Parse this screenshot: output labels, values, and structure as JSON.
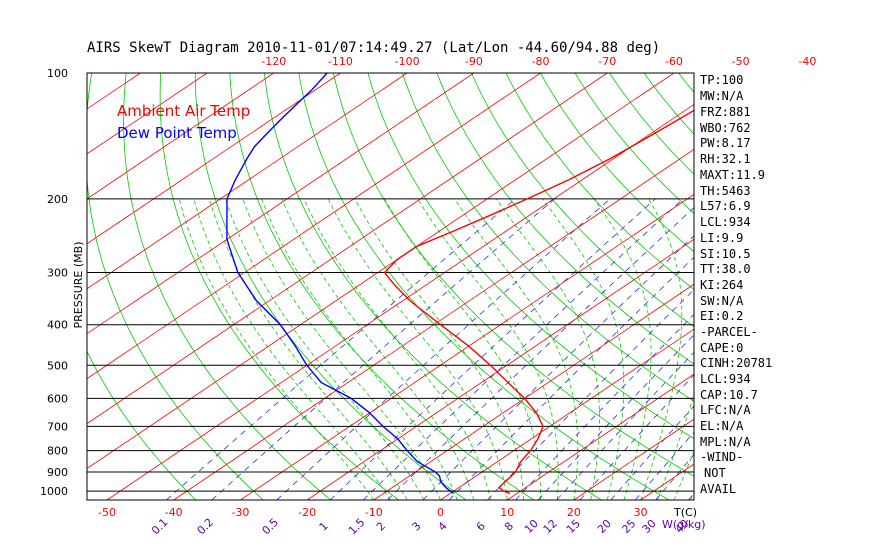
{
  "chart_data": {
    "type": "line",
    "title": "AIRS SkewT Diagram 2010-11-01/07:14:49.27 (Lat/Lon -44.60/94.88 deg)",
    "ylabel": "PRESSURE (MB)",
    "xlabel": "T(C)",
    "mixing_ratio_label": "W(g/kg)",
    "y_scale": "log",
    "ylim": [
      1050,
      100
    ],
    "xlim_at_1050mb": [
      -53,
      38
    ],
    "isotherm_skew_deg_C_per_ln_p": 40.4,
    "pressure_ticks": [
      100,
      200,
      300,
      400,
      500,
      600,
      700,
      800,
      900,
      1000
    ],
    "bottom_temp_ticks": [
      -50,
      -40,
      -30,
      -20,
      -10,
      0,
      10,
      20,
      30
    ],
    "top_temp_ticks": [
      -120,
      -110,
      -100,
      -90,
      -80,
      -70,
      -60,
      -50,
      -40
    ],
    "mixing_ratio_ticks": [
      "0.1",
      "0.2",
      "0.5",
      "1",
      "1.5",
      "2",
      "3",
      "4",
      "6",
      "8",
      "10",
      "12",
      "15",
      "20",
      "25",
      "30",
      "40"
    ],
    "mixing_ratio_values": [
      0.1,
      0.2,
      0.5,
      1,
      1.5,
      2,
      3,
      4,
      6,
      8,
      10,
      12,
      15,
      20,
      25,
      30,
      40
    ],
    "grid": true,
    "legend_position": "top-left",
    "series": [
      {
        "name": "Ambient Air Temp",
        "color": "#ff0000",
        "pressure": [
          1013,
          1000,
          980,
          950,
          920,
          900,
          850,
          800,
          750,
          700,
          650,
          600,
          550,
          500,
          450,
          400,
          350,
          320,
          300,
          280,
          260,
          240,
          220,
          200,
          180,
          160,
          150,
          140,
          130,
          120,
          110,
          100
        ],
        "values": [
          9.0,
          7.5,
          6.0,
          5.6,
          5.3,
          5.0,
          3.5,
          2.5,
          1.0,
          -1.0,
          -5.0,
          -10.0,
          -16.0,
          -22.5,
          -30.0,
          -39.0,
          -49.0,
          -55.0,
          -59.0,
          -60.0,
          -60.0,
          -58.0,
          -56.0,
          -54.0,
          -52.0,
          -50.5,
          -50.0,
          -49.5,
          -49.0,
          -48.5,
          -48.0,
          -47.5
        ]
      },
      {
        "name": "Dew Point Temp",
        "color": "#0000ff",
        "pressure": [
          1013,
          1000,
          980,
          950,
          920,
          900,
          850,
          800,
          750,
          700,
          650,
          600,
          550,
          500,
          450,
          400,
          350,
          300,
          250,
          200,
          180,
          160,
          150,
          140,
          130,
          120,
          110,
          100
        ],
        "values": [
          0.5,
          -0.5,
          -2.0,
          -4.0,
          -5.5,
          -7.0,
          -12.0,
          -16.0,
          -20.0,
          -25.0,
          -30.0,
          -36.0,
          -44.0,
          -50.0,
          -56.0,
          -63.0,
          -72.0,
          -81.0,
          -90.0,
          -99.0,
          -102.0,
          -105.0,
          -106.5,
          -107.5,
          -108.5,
          -109.5,
          -110.5,
          -112.0
        ]
      }
    ]
  },
  "indices": {
    "tp": "TP:100",
    "mw": "MW:N/A",
    "frz": "FRZ:881",
    "wbo": "WBO:762",
    "pw": "PW:8.17",
    "rh": "RH:32.1",
    "maxt": "MAXT:11.9",
    "th": "TH:5463",
    "l57": "L57:6.9",
    "lcl": "LCL:934",
    "li": "LI:9.9",
    "si": "SI:10.5",
    "tt": "TT:38.0",
    "ki": "KI:264",
    "sw": "SW:N/A",
    "ei": "EI:0.2",
    "parcel_header": "-PARCEL-",
    "cape": "CAPE:0",
    "cinh": "CINH:20781",
    "parcel_lcl": "LCL:934",
    "cap": "CAP:10.7",
    "lfc": "LFC:N/A",
    "el": "EL:N/A",
    "mpl": "MPL:N/A",
    "wind_header": "-WIND-",
    "wind_not": "NOT",
    "wind_avail": "AVAIL"
  },
  "colors": {
    "isotherm": "#ff0000",
    "dry_adiabat": "#00cc00",
    "moist_adiabat": "#00cc00",
    "mixing_ratio": "#3333cc",
    "isobar": "#000000",
    "mixing_ratio_text": "#6600aa"
  }
}
